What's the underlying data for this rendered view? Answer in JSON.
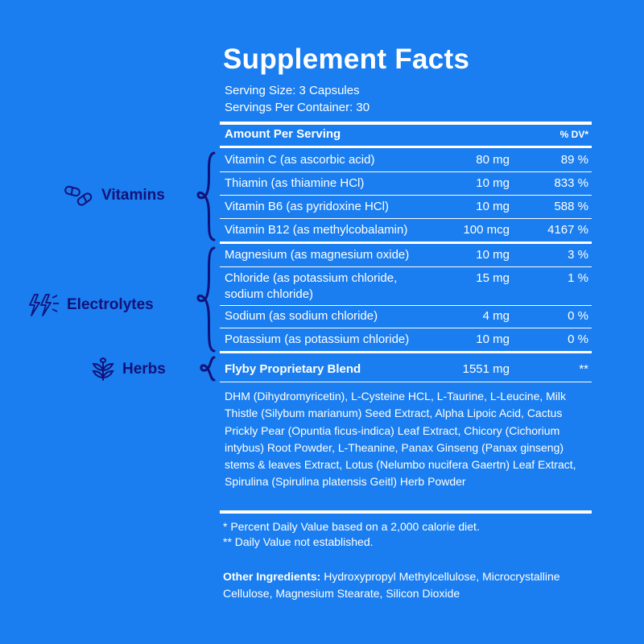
{
  "title": "Supplement Facts",
  "serving_size": "Serving Size: 3 Capsules",
  "servings_per_container": "Servings Per Container: 30",
  "header": {
    "amount": "Amount Per Serving",
    "dv": "% DV*"
  },
  "rows": [
    {
      "name": "Vitamin C (as ascorbic acid)",
      "amount": "80 mg",
      "dv": "89 %"
    },
    {
      "name": "Thiamin (as thiamine HCl)",
      "amount": "10 mg",
      "dv": "833 %"
    },
    {
      "name": "Vitamin B6 (as pyridoxine HCl)",
      "amount": "10 mg",
      "dv": "588 %"
    },
    {
      "name": "Vitamin B12 (as methylcobalamin)",
      "amount": "100 mcg",
      "dv": "4167 %"
    },
    {
      "name": "Magnesium (as magnesium oxide)",
      "amount": "10 mg",
      "dv": "3 %"
    },
    {
      "name_line1": "Chloride (as potassium chloride,",
      "name_line2": "sodium chloride)",
      "amount": "15 mg",
      "dv": "1 %"
    },
    {
      "name": "Sodium (as sodium chloride)",
      "amount": "4 mg",
      "dv": "0 %"
    },
    {
      "name": "Potassium (as potassium chloride)",
      "amount": "10 mg",
      "dv": "0 %"
    },
    {
      "name": "Flyby Proprietary Blend",
      "amount": "1551 mg",
      "dv": "**"
    }
  ],
  "blend_ingredients": "DHM (Dihydromyricetin), L-Cysteine HCL, L-Taurine, L-Leucine, Milk Thistle (Silybum marianum) Seed Extract, Alpha Lipoic Acid, Cactus Prickly Pear (Opuntia ficus-indica) Leaf Extract, Chicory (Cichorium intybus) Root Powder, L-Theanine, Panax Ginseng (Panax ginseng) stems & leaves Extract, Lotus (Nelumbo nucifera Gaertn) Leaf Extract, Spirulina (Spirulina platensis Geitl) Herb Powder",
  "footnote1": "*  Percent Daily Value based on a 2,000 calorie diet.",
  "footnote2": "** Daily Value not established.",
  "other_label": "Other Ingredients:",
  "other_text": " Hydroxypropyl Methylcellulose, Microcrystalline Cellulose, Magnesium Stearate, Silicon Dioxide",
  "groups": {
    "vitamins": {
      "label": "Vitamins",
      "icon": "capsule-icon"
    },
    "electrolytes": {
      "label": "Electrolytes",
      "icon": "lightning-icon"
    },
    "herbs": {
      "label": "Herbs",
      "icon": "leaf-icon"
    }
  },
  "colors": {
    "background": "#1a7ef0",
    "text": "#ffffff",
    "accent_navy": "#13127a"
  }
}
